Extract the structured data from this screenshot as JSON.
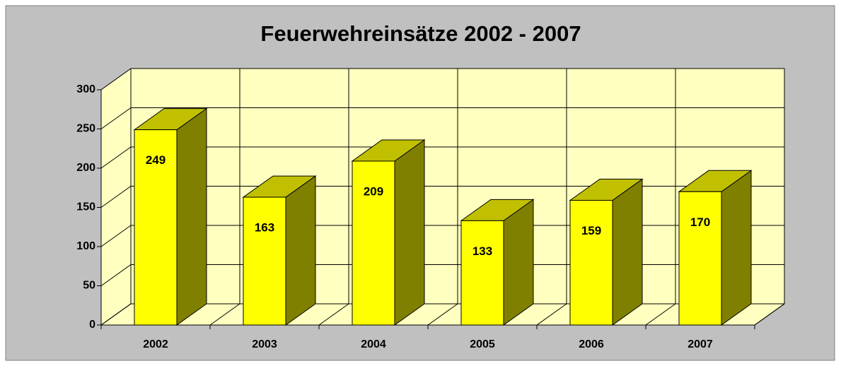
{
  "chart_data": {
    "type": "bar",
    "title": "Feuerwehreinsätze 2002 - 2007",
    "categories": [
      "2002",
      "2003",
      "2004",
      "2005",
      "2006",
      "2007"
    ],
    "values": [
      249,
      163,
      209,
      133,
      159,
      170
    ],
    "color": "#ffff00",
    "ylim": [
      0,
      300
    ],
    "yticks": [
      0,
      50,
      100,
      150,
      200,
      250,
      300
    ],
    "grid": true
  }
}
